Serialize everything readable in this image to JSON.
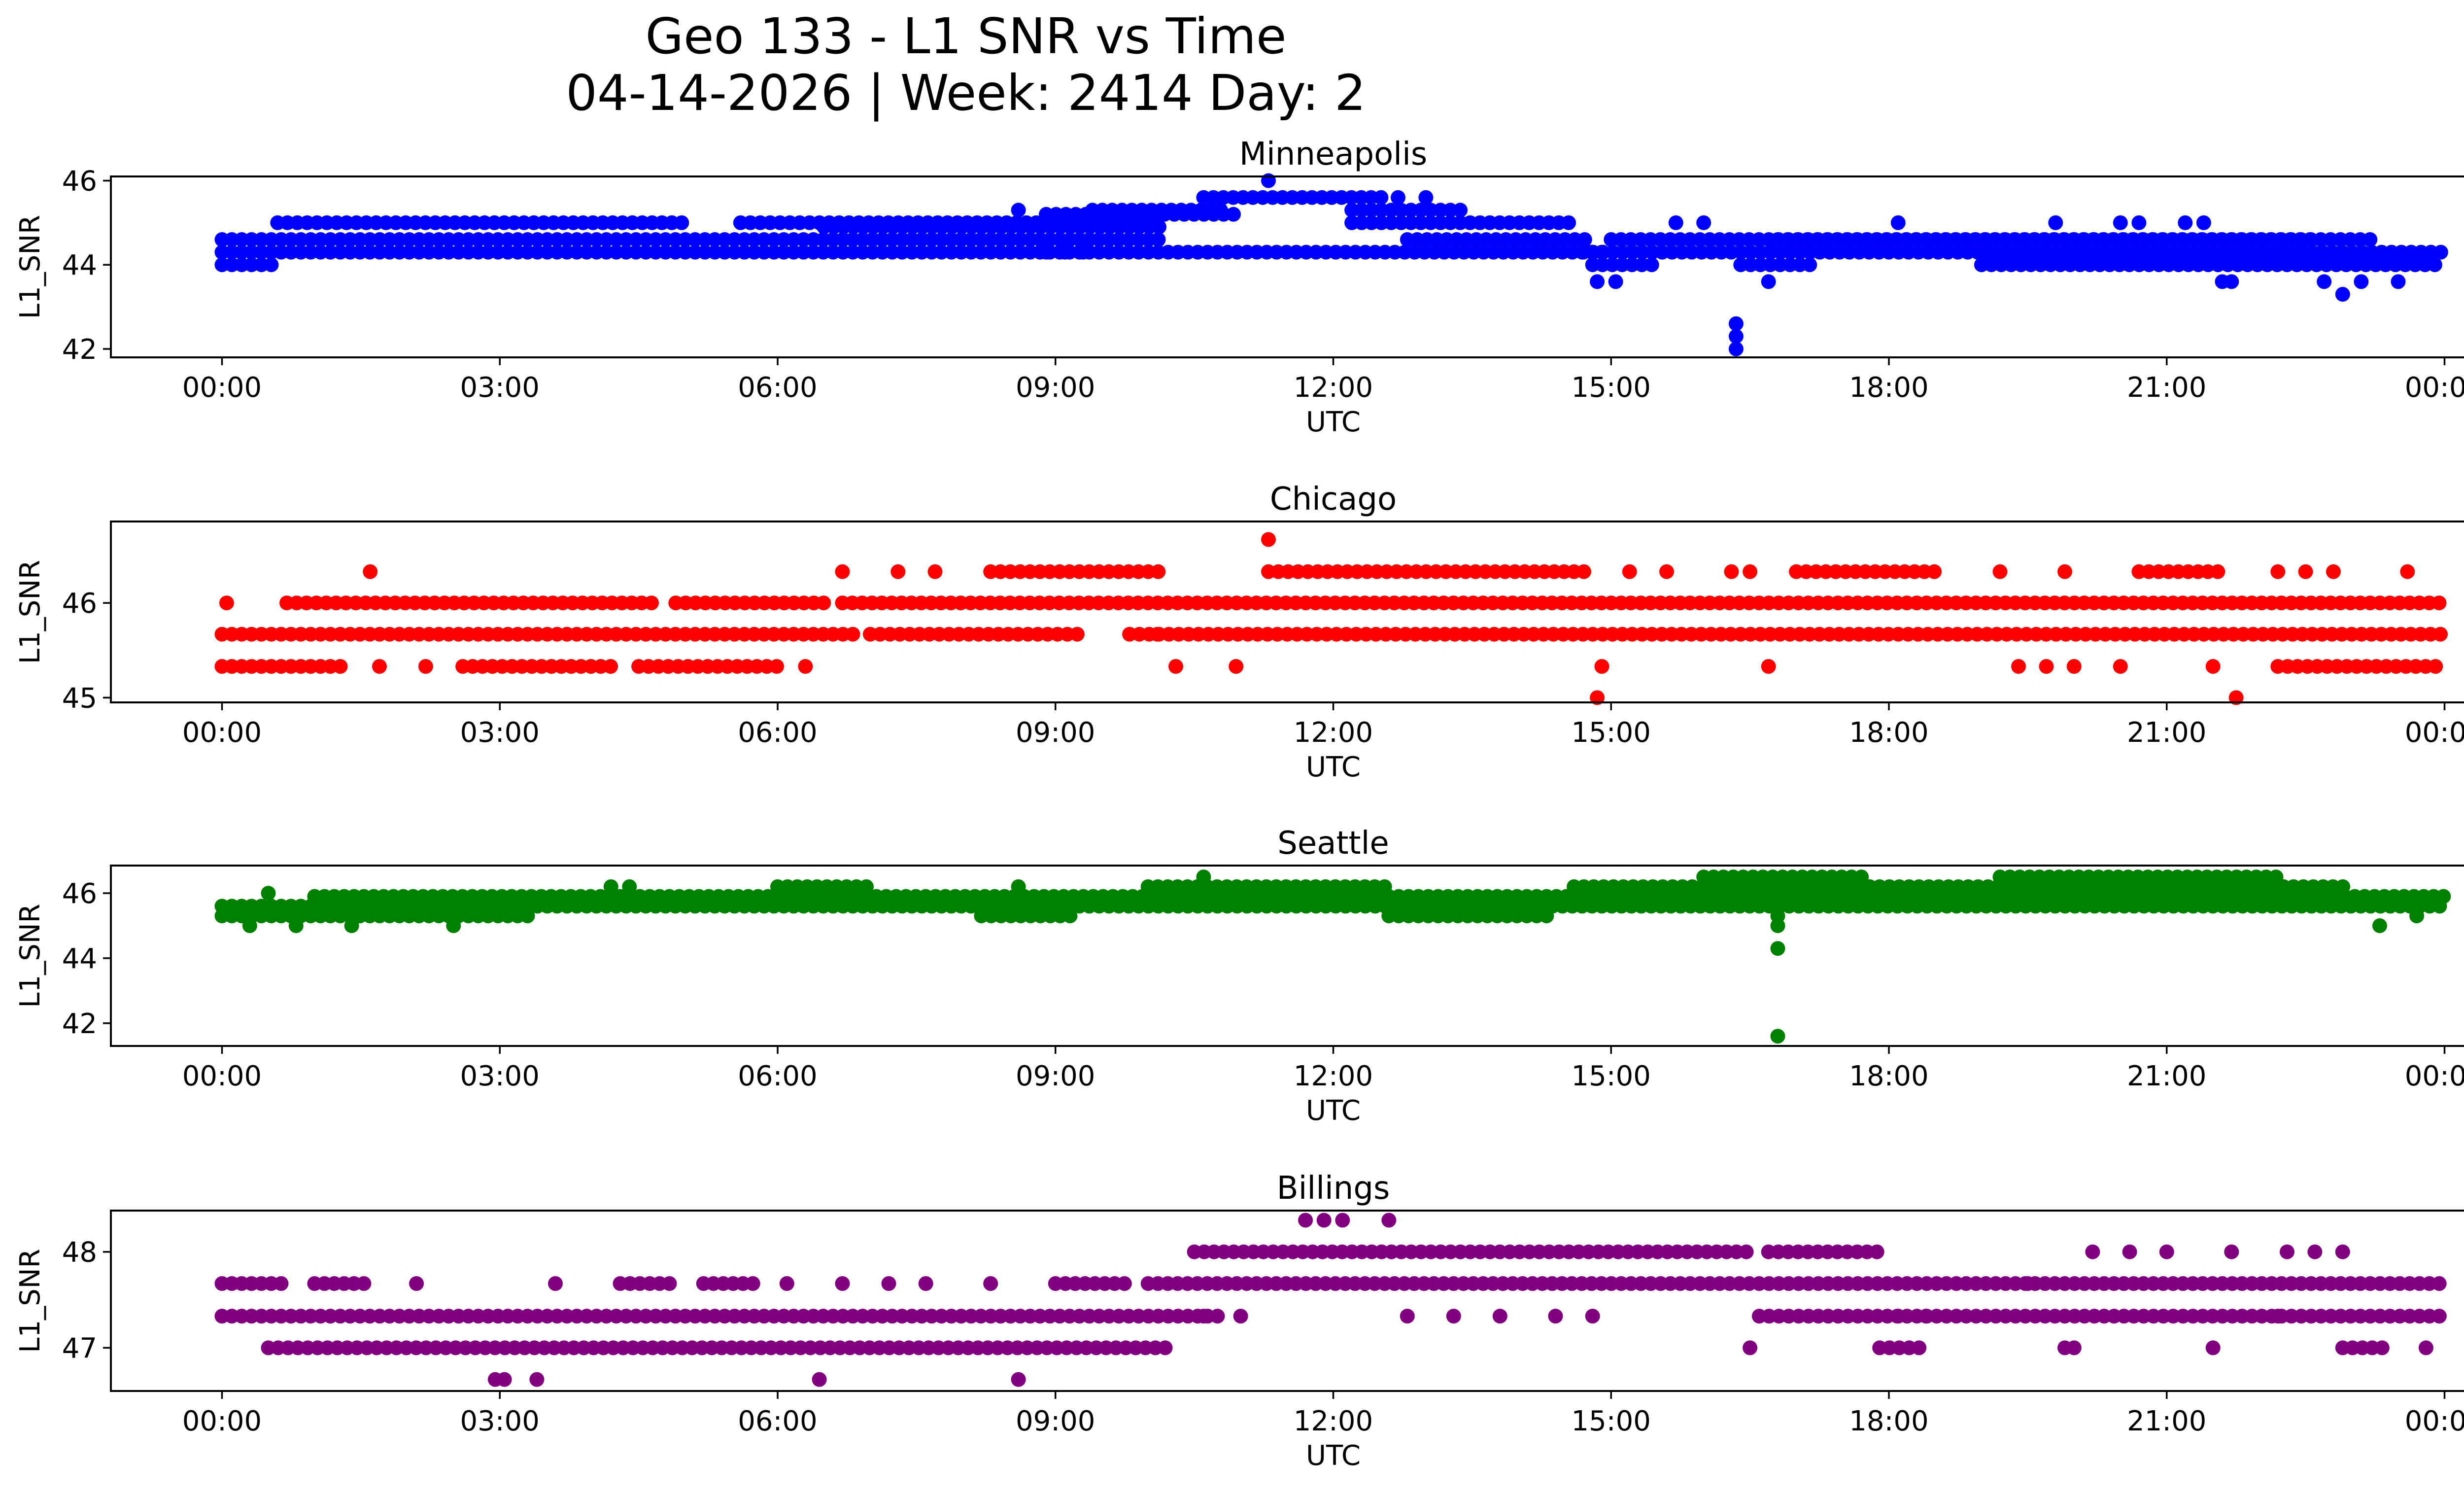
{
  "figure_title": "Geo 133 - L1 SNR vs Time",
  "figure_subtitle": "04-14-2026 | Week: 2414 Day: 2",
  "chart_data": [
    {
      "type": "scatter",
      "title": "Minneapolis",
      "xlabel": "UTC",
      "ylabel": "L1_SNR",
      "color": "#0000ff",
      "ylim": [
        41.8,
        46.1
      ],
      "yticks": [
        42,
        44,
        46
      ],
      "xticks": [
        "00:00",
        "03:00",
        "06:00",
        "09:00",
        "12:00",
        "15:00",
        "18:00",
        "21:00",
        "00:00"
      ],
      "xlim_hours": [
        -1.2,
        25.2
      ],
      "bands": [
        {
          "y": 44.3,
          "from": 0.0,
          "to": 14.9
        },
        {
          "y": 44.6,
          "from": 0.0,
          "to": 10.2
        },
        {
          "y": 44.3,
          "from": 14.7,
          "to": 24.0
        },
        {
          "y": 44.6,
          "from": 15.0,
          "to": 23.3
        },
        {
          "y": 44.0,
          "from": 0.0,
          "to": 0.6
        },
        {
          "y": 44.0,
          "from": 14.8,
          "to": 15.5
        },
        {
          "y": 44.0,
          "from": 16.4,
          "to": 17.2
        },
        {
          "y": 44.0,
          "from": 19.0,
          "to": 24.0
        },
        {
          "y": 44.9,
          "from": 6.5,
          "to": 10.2
        },
        {
          "y": 44.6,
          "from": 12.8,
          "to": 14.8
        },
        {
          "y": 45.2,
          "from": 8.9,
          "to": 11.0
        },
        {
          "y": 45.3,
          "from": 9.4,
          "to": 10.8
        },
        {
          "y": 45.6,
          "from": 10.6,
          "to": 12.6
        },
        {
          "y": 45.3,
          "from": 12.2,
          "to": 13.4
        },
        {
          "y": 45.0,
          "from": 12.2,
          "to": 14.6
        },
        {
          "y": 45.0,
          "from": 0.6,
          "to": 5.0
        },
        {
          "y": 45.0,
          "from": 5.6,
          "to": 9.2
        },
        {
          "y": 44.6,
          "from": 16.8,
          "to": 22.6
        }
      ],
      "points": [
        {
          "x": 11.3,
          "y": 46.0
        },
        {
          "x": 16.35,
          "y": 42.6
        },
        {
          "x": 16.35,
          "y": 42.3
        },
        {
          "x": 16.35,
          "y": 42.0
        },
        {
          "x": 16.7,
          "y": 43.6
        },
        {
          "x": 14.85,
          "y": 43.6
        },
        {
          "x": 15.05,
          "y": 43.6
        },
        {
          "x": 21.6,
          "y": 43.6
        },
        {
          "x": 21.7,
          "y": 43.6
        },
        {
          "x": 22.7,
          "y": 43.6
        },
        {
          "x": 22.9,
          "y": 43.3
        },
        {
          "x": 23.1,
          "y": 43.6
        },
        {
          "x": 23.5,
          "y": 43.6
        },
        {
          "x": 15.7,
          "y": 45.0
        },
        {
          "x": 16.0,
          "y": 45.0
        },
        {
          "x": 18.1,
          "y": 45.0
        },
        {
          "x": 19.8,
          "y": 45.0
        },
        {
          "x": 20.5,
          "y": 45.0
        },
        {
          "x": 20.7,
          "y": 45.0
        },
        {
          "x": 21.2,
          "y": 45.0
        },
        {
          "x": 21.4,
          "y": 45.0
        },
        {
          "x": 8.6,
          "y": 45.3
        },
        {
          "x": 8.9,
          "y": 44.3
        },
        {
          "x": 9.1,
          "y": 44.3
        },
        {
          "x": 9.3,
          "y": 44.3
        },
        {
          "x": 13.0,
          "y": 45.6
        },
        {
          "x": 12.7,
          "y": 45.6
        }
      ]
    },
    {
      "type": "scatter",
      "title": "Chicago",
      "xlabel": "UTC",
      "ylabel": "L1_SNR",
      "color": "#ff0000",
      "ylim": [
        44.95,
        46.86
      ],
      "yticks": [
        45,
        46
      ],
      "xticks": [
        "00:00",
        "03:00",
        "06:00",
        "09:00",
        "12:00",
        "15:00",
        "18:00",
        "21:00",
        "00:00"
      ],
      "xlim_hours": [
        -1.2,
        25.2
      ],
      "bands": [
        {
          "y": 45.67,
          "from": 0.0,
          "to": 6.9
        },
        {
          "y": 45.67,
          "from": 9.8,
          "to": 24.0
        },
        {
          "y": 46.0,
          "from": 6.7,
          "to": 24.0
        },
        {
          "y": 46.0,
          "from": 0.7,
          "to": 4.7
        },
        {
          "y": 45.67,
          "from": 7.0,
          "to": 9.3
        },
        {
          "y": 45.33,
          "from": 0.0,
          "to": 1.3
        },
        {
          "y": 45.33,
          "from": 2.6,
          "to": 4.2
        },
        {
          "y": 45.33,
          "from": 4.5,
          "to": 6.0
        },
        {
          "y": 45.33,
          "from": 22.2,
          "to": 24.0
        },
        {
          "y": 46.33,
          "from": 8.3,
          "to": 10.2
        },
        {
          "y": 46.33,
          "from": 11.3,
          "to": 14.8
        },
        {
          "y": 46.33,
          "from": 17.0,
          "to": 18.5
        },
        {
          "y": 46.33,
          "from": 20.7,
          "to": 21.6
        },
        {
          "y": 46.0,
          "from": 4.9,
          "to": 6.5
        }
      ],
      "points": [
        {
          "x": 11.3,
          "y": 46.67
        },
        {
          "x": 1.6,
          "y": 46.33
        },
        {
          "x": 6.7,
          "y": 46.33
        },
        {
          "x": 7.3,
          "y": 46.33
        },
        {
          "x": 7.7,
          "y": 46.33
        },
        {
          "x": 0.05,
          "y": 46.0
        },
        {
          "x": 14.85,
          "y": 45.0
        },
        {
          "x": 21.75,
          "y": 45.0
        },
        {
          "x": 10.3,
          "y": 45.33
        },
        {
          "x": 10.95,
          "y": 45.33
        },
        {
          "x": 14.9,
          "y": 45.33
        },
        {
          "x": 16.7,
          "y": 45.33
        },
        {
          "x": 19.4,
          "y": 45.33
        },
        {
          "x": 19.7,
          "y": 45.33
        },
        {
          "x": 20.0,
          "y": 45.33
        },
        {
          "x": 20.5,
          "y": 45.33
        },
        {
          "x": 21.5,
          "y": 45.33
        },
        {
          "x": 22.5,
          "y": 46.33
        },
        {
          "x": 22.8,
          "y": 46.33
        },
        {
          "x": 23.6,
          "y": 46.33
        },
        {
          "x": 15.2,
          "y": 46.33
        },
        {
          "x": 15.6,
          "y": 46.33
        },
        {
          "x": 16.3,
          "y": 46.33
        },
        {
          "x": 16.5,
          "y": 46.33
        },
        {
          "x": 19.2,
          "y": 46.33
        },
        {
          "x": 19.9,
          "y": 46.33
        },
        {
          "x": 22.2,
          "y": 46.33
        },
        {
          "x": 1.7,
          "y": 45.33
        },
        {
          "x": 2.2,
          "y": 45.33
        },
        {
          "x": 6.3,
          "y": 45.33
        },
        {
          "x": 10.1,
          "y": 45.67
        }
      ]
    },
    {
      "type": "scatter",
      "title": "Seattle",
      "xlabel": "UTC",
      "ylabel": "L1_SNR",
      "color": "#008000",
      "ylim": [
        41.3,
        46.85
      ],
      "yticks": [
        42,
        44,
        46
      ],
      "xticks": [
        "00:00",
        "03:00",
        "06:00",
        "09:00",
        "12:00",
        "15:00",
        "18:00",
        "21:00",
        "00:00"
      ],
      "xlim_hours": [
        -1.2,
        25.2
      ],
      "bands": [
        {
          "y": 45.3,
          "from": 0.0,
          "to": 3.4
        },
        {
          "y": 45.6,
          "from": 0.0,
          "to": 24.0
        },
        {
          "y": 45.9,
          "from": 1.0,
          "to": 24.0
        },
        {
          "y": 46.2,
          "from": 10.0,
          "to": 12.6
        },
        {
          "y": 46.2,
          "from": 14.6,
          "to": 23.0
        },
        {
          "y": 46.5,
          "from": 16.0,
          "to": 17.8
        },
        {
          "y": 46.5,
          "from": 19.2,
          "to": 22.2
        },
        {
          "y": 45.3,
          "from": 12.6,
          "to": 14.4
        },
        {
          "y": 45.3,
          "from": 8.2,
          "to": 9.2
        },
        {
          "y": 46.2,
          "from": 6.0,
          "to": 7.0
        }
      ],
      "points": [
        {
          "x": 16.8,
          "y": 41.6
        },
        {
          "x": 16.8,
          "y": 44.3
        },
        {
          "x": 16.8,
          "y": 45.0
        },
        {
          "x": 16.8,
          "y": 45.3
        },
        {
          "x": 0.3,
          "y": 45.0
        },
        {
          "x": 0.8,
          "y": 45.0
        },
        {
          "x": 1.4,
          "y": 45.0
        },
        {
          "x": 2.5,
          "y": 45.0
        },
        {
          "x": 23.3,
          "y": 45.0
        },
        {
          "x": 10.6,
          "y": 46.5
        },
        {
          "x": 4.2,
          "y": 46.2
        },
        {
          "x": 4.4,
          "y": 46.2
        },
        {
          "x": 0.5,
          "y": 46.0
        },
        {
          "x": 8.6,
          "y": 46.2
        },
        {
          "x": 23.7,
          "y": 45.3
        }
      ]
    },
    {
      "type": "scatter",
      "title": "Billings",
      "xlabel": "UTC",
      "ylabel": "L1_SNR",
      "color": "#800080",
      "ylim": [
        46.55,
        48.43
      ],
      "yticks": [
        47,
        48
      ],
      "xticks": [
        "00:00",
        "03:00",
        "06:00",
        "09:00",
        "12:00",
        "15:00",
        "18:00",
        "21:00",
        "00:00"
      ],
      "xlim_hours": [
        -1.2,
        25.2
      ],
      "bands": [
        {
          "y": 47.33,
          "from": 0.0,
          "to": 10.8
        },
        {
          "y": 47.0,
          "from": 0.5,
          "to": 10.2
        },
        {
          "y": 47.67,
          "from": 10.0,
          "to": 24.0
        },
        {
          "y": 48.0,
          "from": 10.5,
          "to": 16.5
        },
        {
          "y": 47.33,
          "from": 16.6,
          "to": 24.0
        },
        {
          "y": 47.67,
          "from": 0.0,
          "to": 0.7
        },
        {
          "y": 47.67,
          "from": 4.3,
          "to": 4.9
        },
        {
          "y": 47.67,
          "from": 5.2,
          "to": 5.8
        },
        {
          "y": 48.0,
          "from": 16.7,
          "to": 17.9
        },
        {
          "y": 47.67,
          "from": 9.0,
          "to": 9.8
        },
        {
          "y": 47.0,
          "from": 17.9,
          "to": 18.4
        },
        {
          "y": 47.0,
          "from": 22.9,
          "to": 23.4
        },
        {
          "y": 47.67,
          "from": 1.0,
          "to": 1.6
        }
      ],
      "points": [
        {
          "x": 2.95,
          "y": 46.67
        },
        {
          "x": 3.05,
          "y": 46.67
        },
        {
          "x": 3.4,
          "y": 46.67
        },
        {
          "x": 6.45,
          "y": 46.67
        },
        {
          "x": 8.6,
          "y": 46.67
        },
        {
          "x": 11.7,
          "y": 48.33
        },
        {
          "x": 11.9,
          "y": 48.33
        },
        {
          "x": 12.1,
          "y": 48.33
        },
        {
          "x": 12.6,
          "y": 48.33
        },
        {
          "x": 2.1,
          "y": 47.67
        },
        {
          "x": 3.6,
          "y": 47.67
        },
        {
          "x": 6.1,
          "y": 47.67
        },
        {
          "x": 6.7,
          "y": 47.67
        },
        {
          "x": 7.2,
          "y": 47.67
        },
        {
          "x": 7.6,
          "y": 47.67
        },
        {
          "x": 8.3,
          "y": 47.67
        },
        {
          "x": 10.6,
          "y": 47.33
        },
        {
          "x": 11.0,
          "y": 47.33
        },
        {
          "x": 12.8,
          "y": 47.33
        },
        {
          "x": 13.3,
          "y": 47.33
        },
        {
          "x": 13.8,
          "y": 47.33
        },
        {
          "x": 14.4,
          "y": 47.33
        },
        {
          "x": 14.8,
          "y": 47.33
        },
        {
          "x": 16.5,
          "y": 47.0
        },
        {
          "x": 19.9,
          "y": 47.0
        },
        {
          "x": 20.0,
          "y": 47.0
        },
        {
          "x": 21.5,
          "y": 47.0
        },
        {
          "x": 23.8,
          "y": 47.0
        },
        {
          "x": 20.2,
          "y": 48.0
        },
        {
          "x": 20.6,
          "y": 48.0
        },
        {
          "x": 21.0,
          "y": 48.0
        },
        {
          "x": 21.7,
          "y": 48.0
        },
        {
          "x": 22.3,
          "y": 48.0
        },
        {
          "x": 22.6,
          "y": 48.0
        },
        {
          "x": 22.9,
          "y": 48.0
        },
        {
          "x": 19.5,
          "y": 47.67
        },
        {
          "x": 18.1,
          "y": 47.33
        },
        {
          "x": 18.4,
          "y": 47.33
        },
        {
          "x": 22.2,
          "y": 47.33
        }
      ]
    }
  ]
}
